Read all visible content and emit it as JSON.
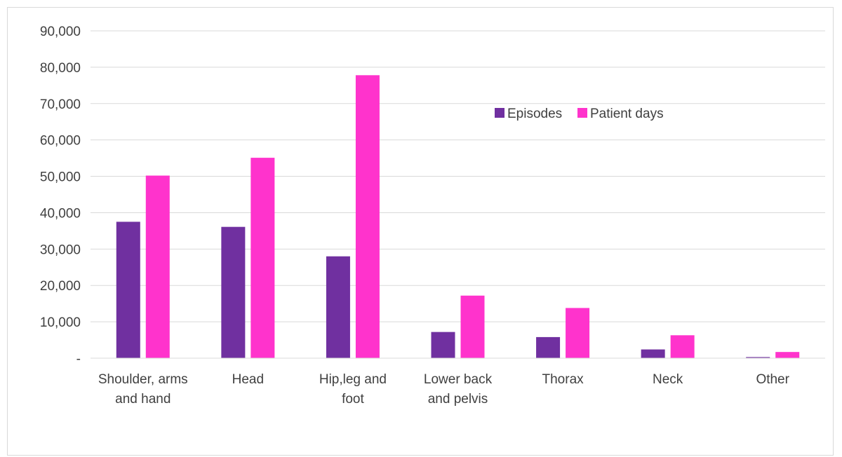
{
  "chart_data": {
    "type": "bar",
    "categories": [
      [
        "Shoulder, arms",
        "and hand"
      ],
      [
        "Head"
      ],
      [
        "Hip,leg and",
        "foot"
      ],
      [
        "Lower back",
        "and pelvis"
      ],
      [
        "Thorax"
      ],
      [
        "Neck"
      ],
      [
        "Other"
      ]
    ],
    "series": [
      {
        "name": "Episodes",
        "color": "#7030a0",
        "values": [
          37500,
          36100,
          28000,
          7200,
          5800,
          2400,
          300
        ]
      },
      {
        "name": "Patient days",
        "color": "#ff33cc",
        "values": [
          50200,
          55100,
          77800,
          17200,
          13800,
          6300,
          1700
        ]
      }
    ],
    "ylim": [
      0,
      90000
    ],
    "yticks": [
      0,
      10000,
      20000,
      30000,
      40000,
      50000,
      60000,
      70000,
      80000,
      90000
    ],
    "ytick_labels": [
      "-",
      "10,000",
      "20,000",
      "30,000",
      "40,000",
      "50,000",
      "60,000",
      "70,000",
      "80,000",
      "90,000"
    ],
    "grid": true,
    "legend": "top-right, inside plot",
    "title": "",
    "xlabel": "",
    "ylabel": ""
  }
}
